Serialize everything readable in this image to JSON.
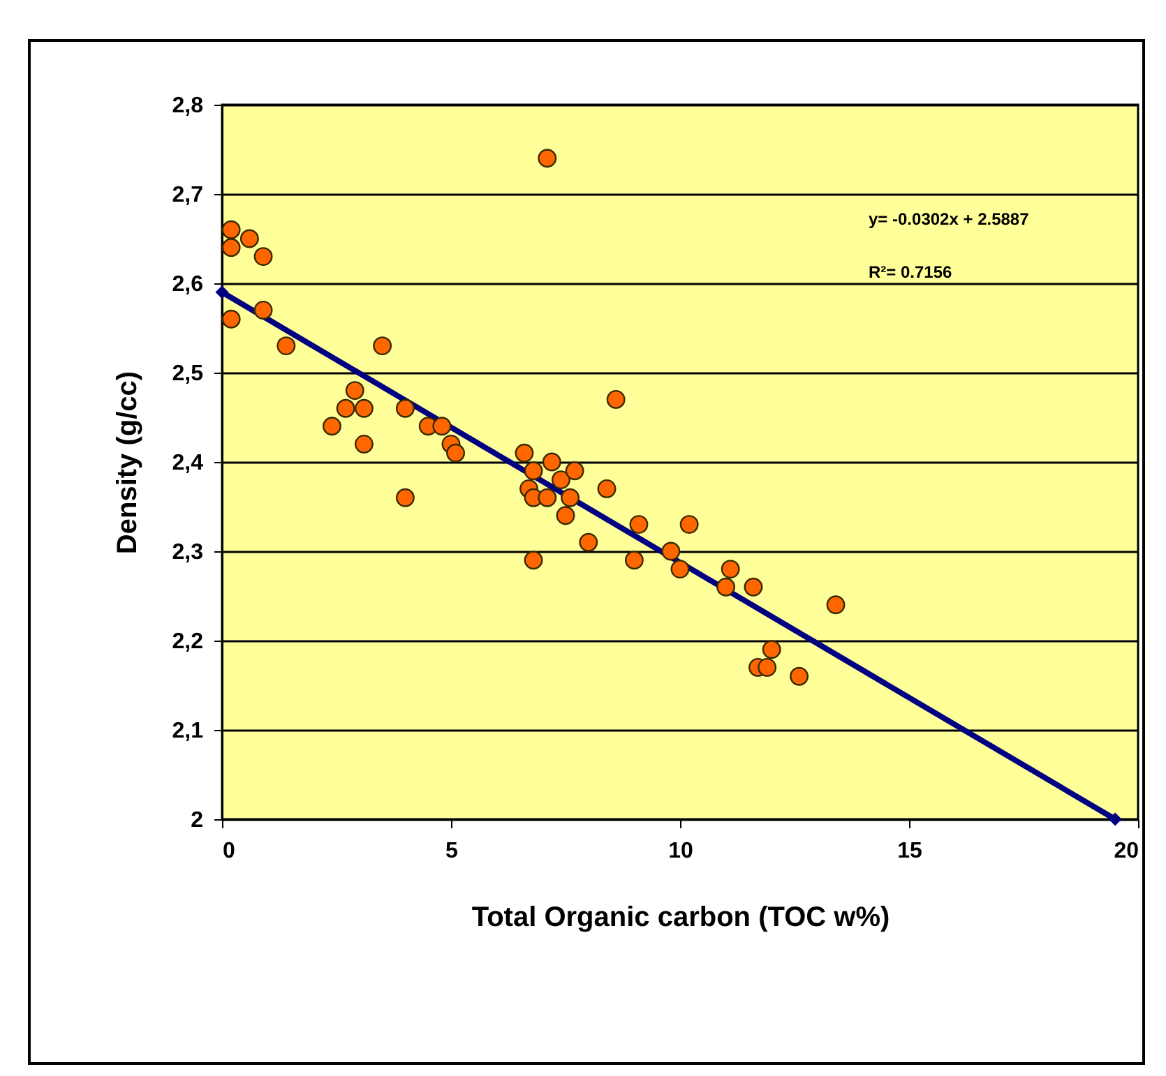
{
  "chart_data": {
    "type": "scatter",
    "xlabel": "Total Organic carbon (TOC w%)",
    "ylabel": "Density (g/cc)",
    "xlim": [
      0,
      20
    ],
    "xticks": [
      0,
      5,
      10,
      15,
      20
    ],
    "ylim": [
      2,
      2.8
    ],
    "yticks": [
      {
        "value": 2,
        "label": "2"
      },
      {
        "value": 2.1,
        "label": "2,1"
      },
      {
        "value": 2.2,
        "label": "2,2"
      },
      {
        "value": 2.3,
        "label": "2,3"
      },
      {
        "value": 2.4,
        "label": "2,4"
      },
      {
        "value": 2.5,
        "label": "2,5"
      },
      {
        "value": 2.6,
        "label": "2,6"
      },
      {
        "value": 2.7,
        "label": "2,7"
      },
      {
        "value": 2.8,
        "label": "2,8"
      }
    ],
    "grid": "y",
    "marker": "circle",
    "annotations": [
      "y= -0.0302x + 2.5887",
      "R²= 0.7156"
    ],
    "series": [
      {
        "color": "#ff6600",
        "x": [
          0.2,
          0.2,
          0.6,
          0.9,
          0.2,
          0.9,
          1.4,
          3.5,
          2.4,
          2.7,
          2.9,
          3.1,
          3.1,
          4.0,
          4.0,
          4.5,
          4.8,
          5.0,
          5.1,
          6.6,
          6.8,
          6.7,
          6.8,
          6.8,
          7.2,
          7.1,
          7.1,
          7.4,
          7.5,
          7.6,
          7.7,
          8.0,
          8.4,
          8.6,
          9.0,
          9.1,
          9.8,
          10.0,
          10.2,
          11.0,
          11.1,
          11.6,
          11.7,
          11.9,
          12.0,
          12.6,
          13.4
        ],
        "values": [
          2.66,
          2.64,
          2.65,
          2.63,
          2.56,
          2.57,
          2.53,
          2.53,
          2.44,
          2.46,
          2.48,
          2.46,
          2.42,
          2.46,
          2.36,
          2.44,
          2.44,
          2.42,
          2.41,
          2.41,
          2.39,
          2.37,
          2.36,
          2.29,
          2.4,
          2.36,
          2.74,
          2.38,
          2.34,
          2.36,
          2.39,
          2.31,
          2.37,
          2.47,
          2.29,
          2.33,
          2.3,
          2.28,
          2.33,
          2.26,
          2.28,
          2.26,
          2.17,
          2.17,
          2.19,
          2.16,
          2.24
        ]
      },
      {
        "type": "line",
        "color": "#000080",
        "marker": "diamond",
        "x": [
          0,
          19.5
        ],
        "values": [
          2.59,
          2.0
        ]
      }
    ]
  }
}
